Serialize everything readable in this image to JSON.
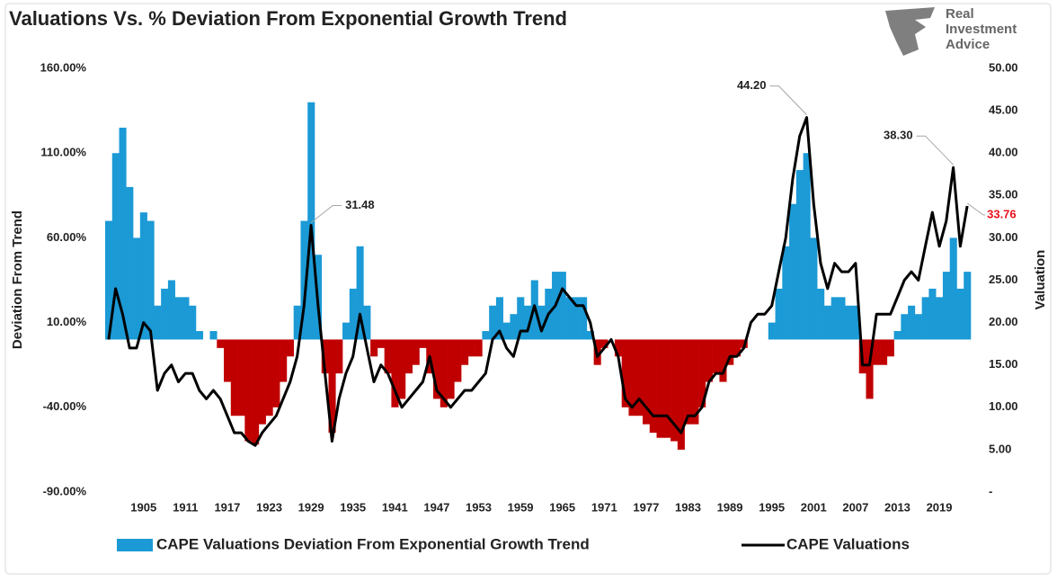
{
  "chart_data": {
    "type": "combo",
    "title": "Valuations Vs. % Deviation From Exponential Growth Trend",
    "logo_text": [
      "Real",
      "Investment",
      "Advice"
    ],
    "ylabel": "Deviation From Trend",
    "y2label": "Valuation",
    "x": [
      1900,
      1901,
      1902,
      1903,
      1904,
      1905,
      1906,
      1907,
      1908,
      1909,
      1910,
      1911,
      1912,
      1913,
      1914,
      1915,
      1916,
      1917,
      1918,
      1919,
      1920,
      1921,
      1922,
      1923,
      1924,
      1925,
      1926,
      1927,
      1928,
      1929,
      1930,
      1931,
      1932,
      1933,
      1934,
      1935,
      1936,
      1937,
      1938,
      1939,
      1940,
      1941,
      1942,
      1943,
      1944,
      1945,
      1946,
      1947,
      1948,
      1949,
      1950,
      1951,
      1952,
      1953,
      1954,
      1955,
      1956,
      1957,
      1958,
      1959,
      1960,
      1961,
      1962,
      1963,
      1964,
      1965,
      1966,
      1967,
      1968,
      1969,
      1970,
      1971,
      1972,
      1973,
      1974,
      1975,
      1976,
      1977,
      1978,
      1979,
      1980,
      1981,
      1982,
      1983,
      1984,
      1985,
      1986,
      1987,
      1988,
      1989,
      1990,
      1991,
      1992,
      1993,
      1994,
      1995,
      1996,
      1997,
      1998,
      1999,
      2000,
      2001,
      2002,
      2003,
      2004,
      2005,
      2006,
      2007,
      2008,
      2009,
      2010,
      2011,
      2012,
      2013,
      2014,
      2015,
      2016,
      2017,
      2018,
      2019,
      2020,
      2021,
      2022,
      2023
    ],
    "xlim": [
      1899.5,
      2023.5
    ],
    "xticks": [
      1905,
      1911,
      1917,
      1923,
      1929,
      1935,
      1941,
      1947,
      1953,
      1959,
      1965,
      1971,
      1977,
      1983,
      1989,
      1995,
      2001,
      2007,
      2013,
      2019
    ],
    "ylim": [
      -90,
      160
    ],
    "yticks": [
      {
        "value": -90,
        "label": "-90.00%"
      },
      {
        "value": -40,
        "label": "-40.00%"
      },
      {
        "value": 10,
        "label": "10.00%"
      },
      {
        "value": 60,
        "label": "60.00%"
      },
      {
        "value": 110,
        "label": "110.00%"
      },
      {
        "value": 160,
        "label": "160.00%"
      }
    ],
    "y2lim": [
      0,
      50
    ],
    "y2ticks": [
      {
        "value": 0,
        "label": "-"
      },
      {
        "value": 5,
        "label": "5.00"
      },
      {
        "value": 10,
        "label": "10.00"
      },
      {
        "value": 15,
        "label": "15.00"
      },
      {
        "value": 20,
        "label": "20.00"
      },
      {
        "value": 25,
        "label": "25.00"
      },
      {
        "value": 30,
        "label": "30.00"
      },
      {
        "value": 35,
        "label": "35.00"
      },
      {
        "value": 40,
        "label": "40.00"
      },
      {
        "value": 45,
        "label": "45.00"
      },
      {
        "value": 50,
        "label": "50.00"
      }
    ],
    "legend": "bottom",
    "last_label_color": "#e8111b",
    "series": [
      {
        "name": "CAPE Valuations Deviation From Exponential Growth Trend",
        "type": "bar",
        "color": "#1b9ad6",
        "negative_color": "#c00000",
        "values": [
          70,
          110,
          125,
          90,
          60,
          75,
          70,
          20,
          30,
          35,
          25,
          25,
          20,
          5,
          0,
          5,
          -5,
          -25,
          -45,
          -45,
          -60,
          -62,
          -50,
          -45,
          -40,
          -25,
          -10,
          20,
          70,
          140,
          50,
          -20,
          -55,
          -20,
          10,
          30,
          55,
          20,
          -10,
          -5,
          -20,
          -40,
          -35,
          -20,
          -15,
          -5,
          -20,
          -35,
          -40,
          -35,
          -25,
          -15,
          -10,
          -10,
          5,
          20,
          25,
          10,
          15,
          25,
          20,
          35,
          20,
          30,
          40,
          40,
          25,
          25,
          25,
          5,
          -15,
          -5,
          0,
          -10,
          -40,
          -45,
          -45,
          -50,
          -55,
          -58,
          -58,
          -60,
          -65,
          -50,
          -50,
          -40,
          -25,
          -20,
          -25,
          -15,
          -10,
          -5,
          0,
          0,
          0,
          10,
          30,
          55,
          80,
          100,
          110,
          60,
          30,
          20,
          25,
          25,
          20,
          20,
          -20,
          -35,
          -15,
          -15,
          -10,
          5,
          15,
          20,
          15,
          25,
          30,
          25,
          40,
          60,
          30,
          40
        ]
      },
      {
        "name": "CAPE Valuations",
        "type": "line",
        "axis": "y2",
        "color": "#000000",
        "values": [
          18,
          24,
          21,
          17,
          17,
          20,
          19,
          12,
          14,
          15,
          13,
          14,
          14,
          12,
          11,
          12,
          11,
          9,
          7,
          7,
          6,
          5.5,
          7,
          8,
          9,
          11,
          13,
          16,
          22,
          31.48,
          22,
          14,
          6,
          11,
          14,
          16,
          21,
          17,
          13,
          15,
          14,
          12,
          10,
          11,
          12,
          13,
          16,
          12,
          11,
          10,
          11,
          12,
          12,
          13,
          14,
          18,
          19,
          17,
          16,
          19,
          19,
          22,
          19,
          21,
          22,
          24,
          23,
          22,
          22,
          20,
          16,
          17,
          18,
          16,
          11,
          10,
          11,
          10,
          9,
          9,
          9,
          8,
          7,
          9,
          9,
          10,
          13,
          14,
          14,
          16,
          16,
          17,
          20,
          21,
          21,
          22,
          26,
          30,
          37,
          42,
          44.2,
          34,
          27,
          24,
          27,
          26,
          26,
          27,
          15,
          15,
          21,
          21,
          21,
          23,
          25,
          26,
          25,
          29,
          33,
          29,
          32,
          38.3,
          29,
          33.76
        ],
        "value_labels": [
          null,
          null,
          null,
          null,
          null,
          null,
          null,
          null,
          null,
          null,
          null,
          null,
          null,
          null,
          null,
          null,
          null,
          null,
          null,
          null,
          null,
          null,
          null,
          null,
          null,
          null,
          null,
          null,
          null,
          "31.48",
          null,
          null,
          null,
          null,
          null,
          null,
          null,
          null,
          null,
          null,
          null,
          null,
          null,
          null,
          null,
          null,
          null,
          null,
          null,
          null,
          null,
          null,
          null,
          null,
          null,
          null,
          null,
          null,
          null,
          null,
          null,
          null,
          null,
          null,
          null,
          null,
          null,
          null,
          null,
          null,
          null,
          null,
          null,
          null,
          null,
          null,
          null,
          null,
          null,
          null,
          null,
          null,
          null,
          null,
          null,
          null,
          null,
          null,
          null,
          null,
          null,
          null,
          null,
          null,
          null,
          null,
          null,
          null,
          null,
          null,
          "44.20",
          null,
          null,
          null,
          null,
          null,
          null,
          null,
          null,
          null,
          null,
          null,
          null,
          null,
          null,
          null,
          null,
          null,
          null,
          null,
          null,
          "38.30",
          null,
          "33.76"
        ]
      }
    ]
  }
}
